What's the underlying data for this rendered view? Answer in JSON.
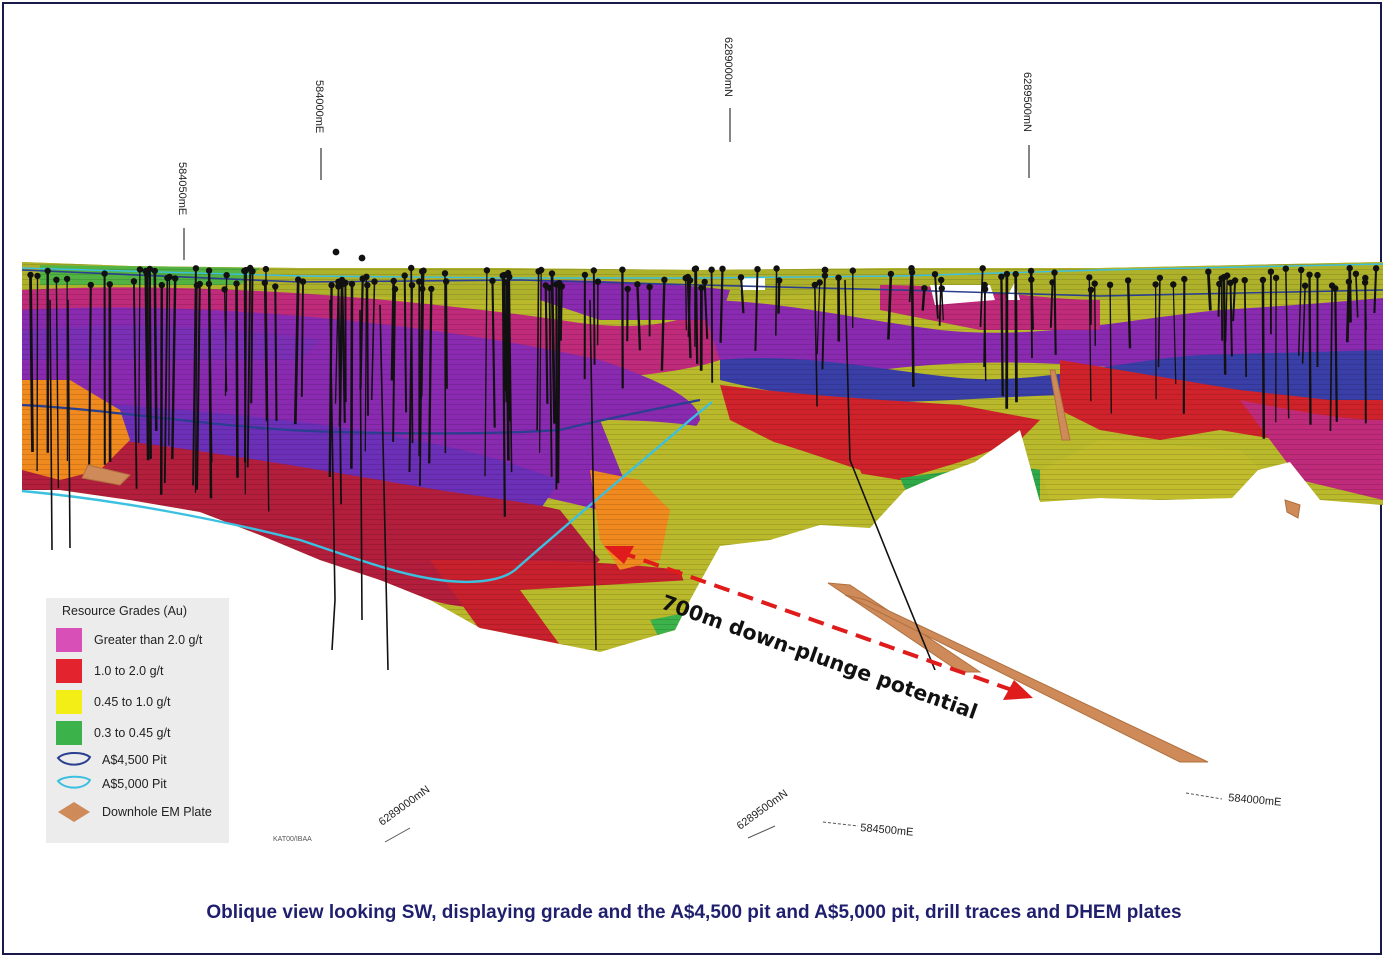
{
  "legend": {
    "title": "Resource Grades (Au)",
    "items": [
      {
        "label": "Greater than 2.0 g/t",
        "color": "#d84fb8",
        "kind": "swatch"
      },
      {
        "label": "1.0 to 2.0 g/t",
        "color": "#e3232d",
        "kind": "swatch"
      },
      {
        "label": "0.45 to 1.0 g/t",
        "color": "#f3ee16",
        "kind": "swatch"
      },
      {
        "label": "0.3 to 0.45 g/t",
        "color": "#3bb34a",
        "kind": "swatch"
      }
    ],
    "pit_4500": {
      "label": "A$4,500 Pit",
      "color": "#2a3f8f",
      "icon": "pit-outline-icon"
    },
    "pit_5000": {
      "label": "A$5,000 Pit",
      "color": "#3cc0e0",
      "icon": "pit-outline-icon"
    },
    "em_plate": {
      "label": "Downhole EM Plate",
      "color": "#cf8a5a",
      "icon": "diamond-plate-icon"
    }
  },
  "grid_labels": {
    "top": [
      "584050mE",
      "584000mE",
      "6289000mN",
      "6289500mN"
    ],
    "bottom": [
      "6289000mN",
      "6289500mN",
      "584500mE",
      "584000mE"
    ]
  },
  "annotation": {
    "text": "700m down-plunge potential",
    "color": "#e01b1b"
  },
  "stamp": "KAT00/IBAA",
  "caption": "Oblique view looking SW, displaying grade and the A$4,500 pit and A$5,000 pit, drill traces and DHEM plates",
  "colors": {
    "purple": "#7a2fb4",
    "blue": "#3a3fa8",
    "magenta": "#b8308a",
    "red": "#d0222a",
    "olive": "#b9b92b",
    "green": "#2fa84a",
    "orange": "#f08a1e",
    "drill": "#111111",
    "caption": "#1f1f6e"
  }
}
